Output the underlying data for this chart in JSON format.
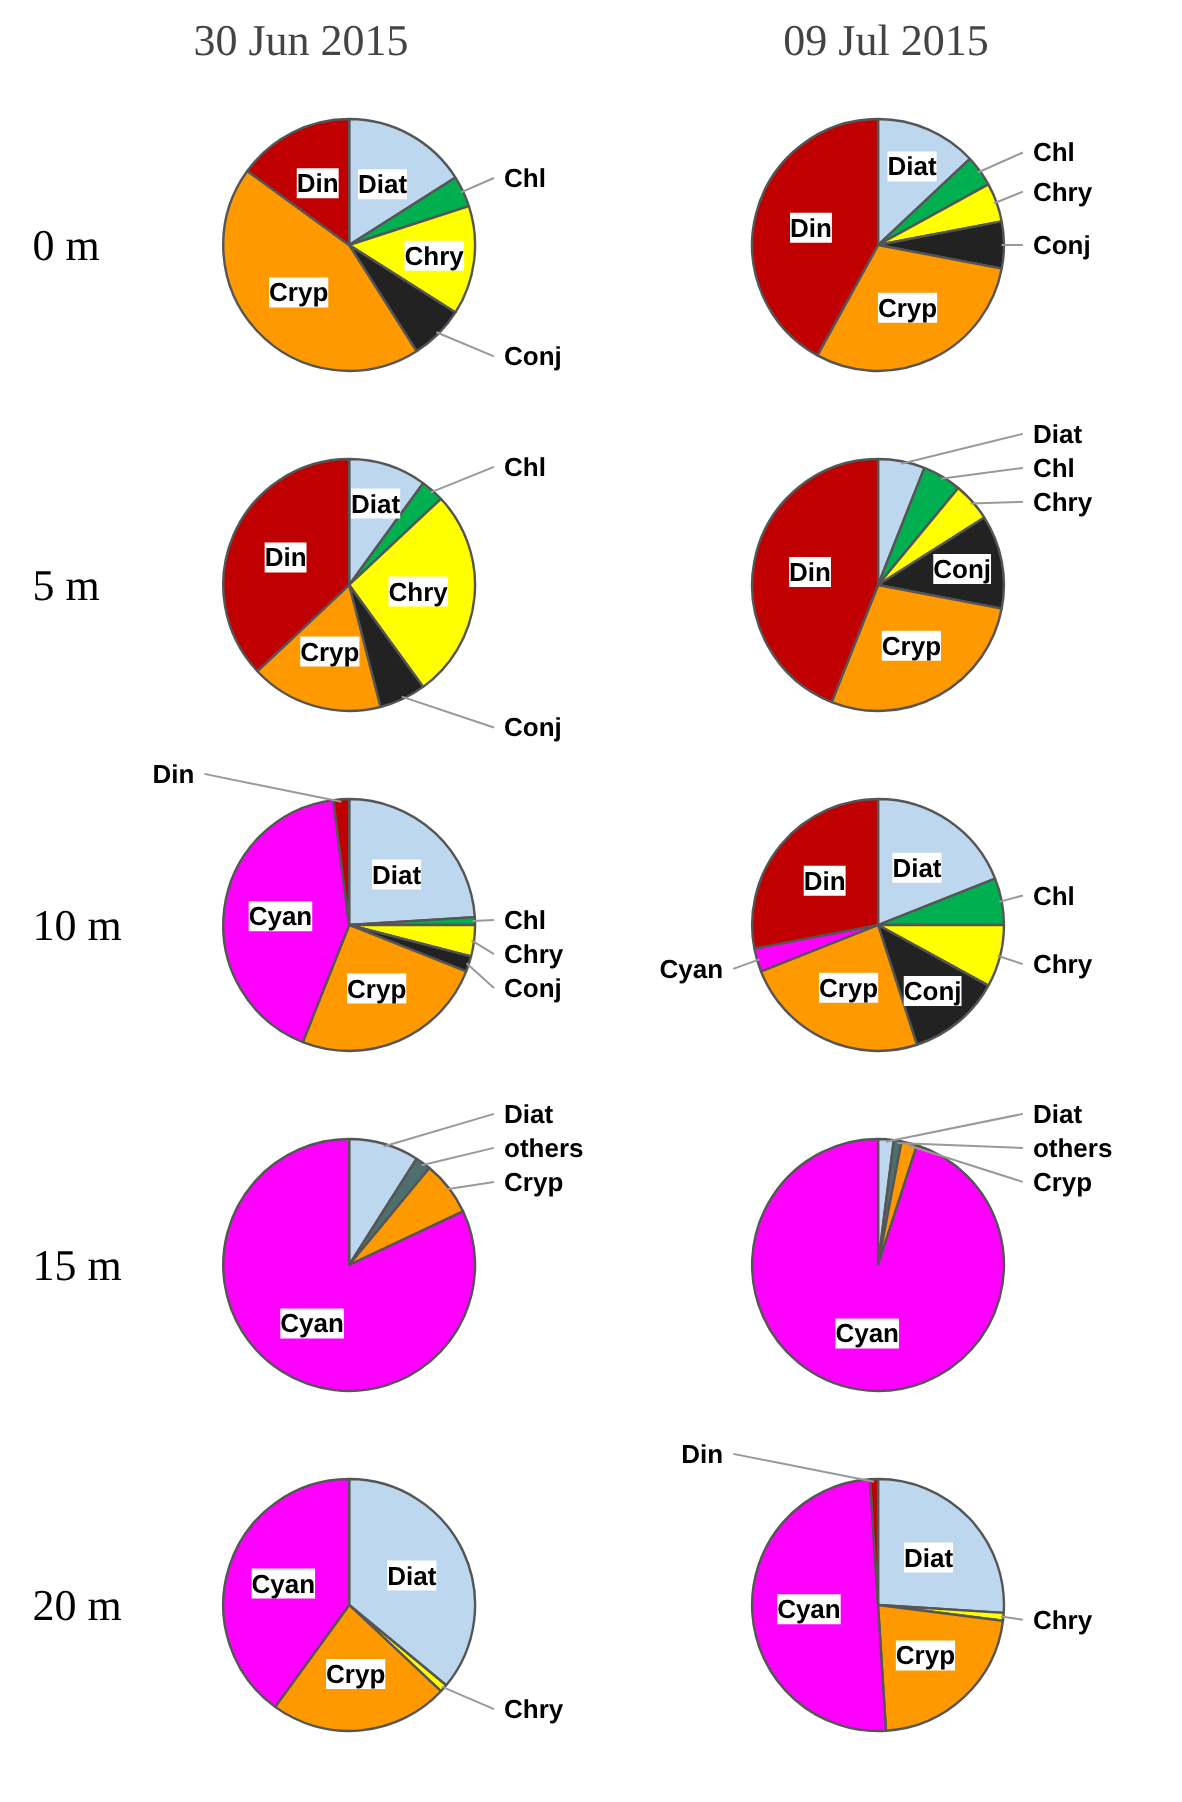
{
  "chart_data": [
    {
      "type": "pie",
      "title": "30 Jun 2015",
      "ylabel": "0 m",
      "categories": [
        "Diat",
        "Chl",
        "Chry",
        "Conj",
        "Cryp",
        "Din"
      ],
      "values": [
        16,
        4,
        14,
        7,
        44,
        15
      ],
      "colors": [
        "#bdd7ee",
        "#00b050",
        "#ffff00",
        "#222222",
        "#ff9900",
        "#c00000"
      ]
    },
    {
      "type": "pie",
      "title": "09 Jul 2015",
      "categories": [
        "Diat",
        "Chl",
        "Chry",
        "Conj",
        "Cryp",
        "Din"
      ],
      "values": [
        13,
        4,
        5,
        6,
        30,
        42
      ],
      "colors": [
        "#bdd7ee",
        "#00b050",
        "#ffff00",
        "#222222",
        "#ff9900",
        "#c00000"
      ]
    },
    {
      "type": "pie",
      "ylabel": "5 m",
      "categories": [
        "Diat",
        "Chl",
        "Chry",
        "Conj",
        "Cryp",
        "Din"
      ],
      "values": [
        10,
        3,
        27,
        6,
        17,
        37
      ],
      "colors": [
        "#bdd7ee",
        "#00b050",
        "#ffff00",
        "#222222",
        "#ff9900",
        "#c00000"
      ]
    },
    {
      "type": "pie",
      "categories": [
        "Diat",
        "Chl",
        "Chry",
        "Conj",
        "Cryp",
        "Din"
      ],
      "values": [
        6,
        5,
        5,
        12,
        28,
        44
      ],
      "colors": [
        "#bdd7ee",
        "#00b050",
        "#ffff00",
        "#222222",
        "#ff9900",
        "#c00000"
      ]
    },
    {
      "type": "pie",
      "ylabel": "10 m",
      "categories": [
        "Diat",
        "Chl",
        "Chry",
        "Conj",
        "Cryp",
        "Cyan",
        "Din"
      ],
      "values": [
        24,
        1,
        4,
        2,
        25,
        42,
        2
      ],
      "colors": [
        "#bdd7ee",
        "#00b050",
        "#ffff00",
        "#222222",
        "#ff9900",
        "#ff00ff",
        "#c00000"
      ]
    },
    {
      "type": "pie",
      "categories": [
        "Diat",
        "Chl",
        "Chry",
        "Conj",
        "Cryp",
        "Cyan",
        "Din"
      ],
      "values": [
        19,
        6,
        8,
        12,
        24,
        3,
        28
      ],
      "colors": [
        "#bdd7ee",
        "#00b050",
        "#ffff00",
        "#222222",
        "#ff9900",
        "#ff00ff",
        "#c00000"
      ]
    },
    {
      "type": "pie",
      "ylabel": "15 m",
      "categories": [
        "Diat",
        "others",
        "Cryp",
        "Cyan"
      ],
      "values": [
        9,
        2,
        7,
        82
      ],
      "colors": [
        "#bdd7ee",
        "#4f6f6f",
        "#ff9900",
        "#ff00ff"
      ]
    },
    {
      "type": "pie",
      "categories": [
        "Diat",
        "others",
        "Cryp",
        "Cyan"
      ],
      "values": [
        2,
        1,
        2,
        95
      ],
      "colors": [
        "#bdd7ee",
        "#4f6f6f",
        "#ff9900",
        "#ff00ff"
      ]
    },
    {
      "type": "pie",
      "ylabel": "20 m",
      "categories": [
        "Diat",
        "Chry",
        "Cryp",
        "Cyan"
      ],
      "values": [
        36,
        1,
        23,
        40
      ],
      "colors": [
        "#bdd7ee",
        "#ffff00",
        "#ff9900",
        "#ff00ff"
      ]
    },
    {
      "type": "pie",
      "categories": [
        "Diat",
        "Chry",
        "Cryp",
        "Cyan",
        "Din"
      ],
      "values": [
        26,
        1,
        22,
        50,
        1
      ],
      "colors": [
        "#bdd7ee",
        "#ffff00",
        "#ff9900",
        "#ff00ff",
        "#c00000"
      ]
    }
  ]
}
